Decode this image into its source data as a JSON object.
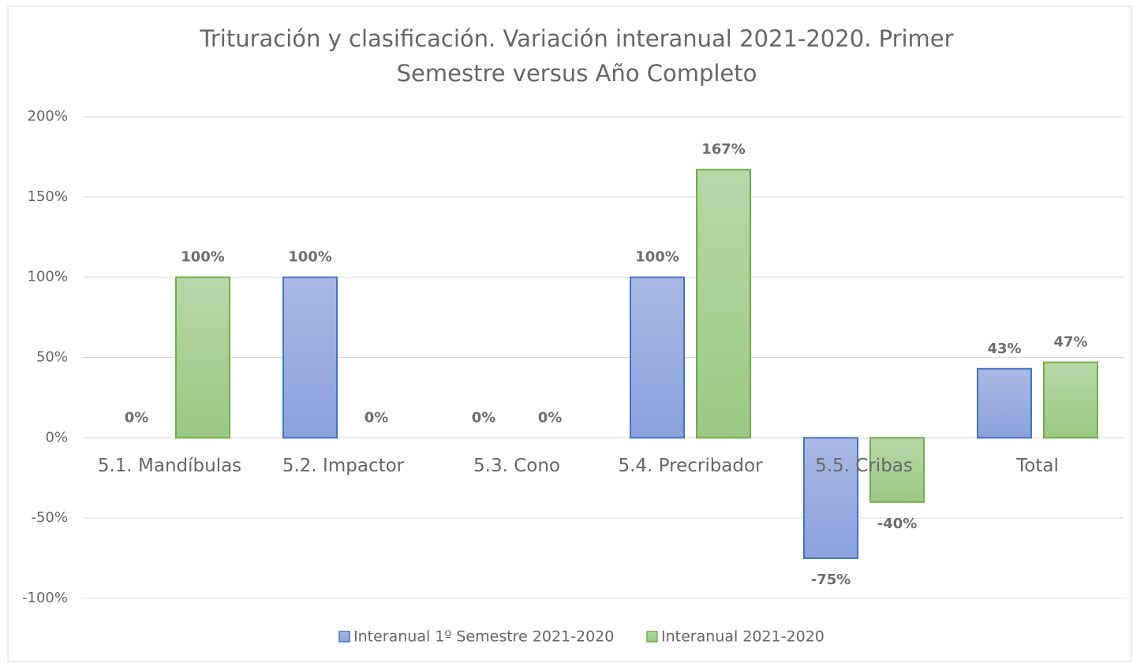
{
  "chart_data": {
    "type": "bar",
    "title": "Trituración y clasificación. Variación interanual 2021-2020. Primer",
    "subtitle": "Semestre versus Año Completo",
    "categories": [
      "5.1. Mandíbulas",
      "5.2. Impactor",
      "5.3. Cono",
      "5.4. Precribador",
      "5.5. Cribas",
      "Total"
    ],
    "series": [
      {
        "name": "Interanual 1º Semestre 2021-2020",
        "color": "#4472c4",
        "values": [
          0,
          100,
          0,
          100,
          -75,
          43
        ],
        "value_labels": [
          "0%",
          "100%",
          "0%",
          "100%",
          "-75%",
          "43%"
        ]
      },
      {
        "name": "Interanual 2021-2020",
        "color": "#70ad47",
        "values": [
          100,
          0,
          0,
          167,
          -40,
          47
        ],
        "value_labels": [
          "100%",
          "0%",
          "0%",
          "167%",
          "-40%",
          "47%"
        ]
      }
    ],
    "ylim": [
      -100,
      200
    ],
    "yticks": [
      {
        "value": -100,
        "label": "-100%"
      },
      {
        "value": -50,
        "label": "-50%"
      },
      {
        "value": 0,
        "label": "0%"
      },
      {
        "value": 50,
        "label": "50%"
      },
      {
        "value": 100,
        "label": "100%"
      },
      {
        "value": 150,
        "label": "150%"
      },
      {
        "value": 200,
        "label": "200%"
      }
    ],
    "grid": true,
    "legend": "bottom"
  }
}
